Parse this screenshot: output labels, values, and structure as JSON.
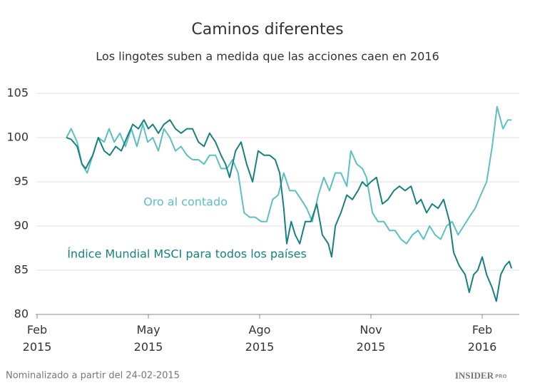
{
  "chart_data": {
    "type": "line",
    "title": "Caminos diferentes",
    "subtitle": "Los lingotes suben a medida que las acciones caen en 2016",
    "annotations": [
      "Oro al contado",
      "Índice Mundial MSCI para todos los países"
    ],
    "footnote": "Nominalizado a partir del 24-02-2015",
    "brand": "INSIDER",
    "brand_suffix": "PRO",
    "xlim": [
      0,
      13
    ],
    "xticks": [
      {
        "value": 0,
        "label": "Feb 2015"
      },
      {
        "value": 3,
        "label": "May 2015"
      },
      {
        "value": 6,
        "label": "Ago 2015"
      },
      {
        "value": 9,
        "label": "Nov 2015"
      },
      {
        "value": 12,
        "label": "Feb 2016"
      }
    ],
    "ylim": [
      80,
      105
    ],
    "yticks": [
      80,
      85,
      90,
      95,
      100,
      105
    ],
    "grid": true,
    "series": [
      {
        "name": "Oro al contado",
        "color": "#5cbfc3",
        "x": [
          0.79,
          0.92,
          1.08,
          1.21,
          1.35,
          1.5,
          1.65,
          1.81,
          1.94,
          2.08,
          2.23,
          2.38,
          2.54,
          2.69,
          2.85,
          2.98,
          3.12,
          3.27,
          3.42,
          3.58,
          3.73,
          3.88,
          4.04,
          4.19,
          4.35,
          4.5,
          4.65,
          4.81,
          4.96,
          5.12,
          5.27,
          5.42,
          5.58,
          5.73,
          5.88,
          6.04,
          6.19,
          6.35,
          6.5,
          6.65,
          6.81,
          6.96,
          7.12,
          7.27,
          7.42,
          7.58,
          7.73,
          7.88,
          8.04,
          8.19,
          8.35,
          8.46,
          8.62,
          8.77,
          8.88,
          9.04,
          9.19,
          9.35,
          9.5,
          9.65,
          9.81,
          9.96,
          10.12,
          10.27,
          10.42,
          10.58,
          10.73,
          10.88,
          11.04,
          11.19,
          11.35,
          11.5,
          11.65,
          11.81,
          11.96,
          12.12,
          12.27,
          12.4,
          12.56,
          12.69,
          12.79
        ],
        "values": [
          100,
          101,
          99.5,
          97,
          96,
          98,
          100,
          99.5,
          101,
          99.5,
          100.5,
          99,
          101,
          99,
          101.5,
          99.5,
          100,
          98.5,
          101,
          100,
          98.5,
          99,
          98,
          97.5,
          97.5,
          97,
          98,
          98,
          96.5,
          96.5,
          97.5,
          96,
          91.5,
          91,
          91,
          90.5,
          90.5,
          93,
          93.5,
          96,
          94,
          94,
          93,
          92,
          90.5,
          93.5,
          95.5,
          94,
          96,
          96,
          94.5,
          98.5,
          97,
          96.5,
          95.5,
          91.5,
          90.5,
          90.5,
          89.5,
          89.5,
          88.5,
          88,
          89,
          89.5,
          88.5,
          90,
          89,
          88.5,
          90,
          90.5,
          89,
          90,
          91,
          92,
          93.5,
          95,
          99,
          103.5,
          101,
          102,
          102
        ]
      },
      {
        "name": "Índice Mundial MSCI para todos los países",
        "color": "#17817f",
        "x": [
          0.79,
          0.92,
          1.08,
          1.21,
          1.31,
          1.5,
          1.65,
          1.81,
          1.96,
          2.12,
          2.27,
          2.42,
          2.58,
          2.73,
          2.88,
          3,
          3.12,
          3.27,
          3.42,
          3.58,
          3.73,
          3.88,
          4.04,
          4.19,
          4.35,
          4.5,
          4.65,
          4.81,
          4.96,
          5.08,
          5.19,
          5.35,
          5.5,
          5.65,
          5.81,
          5.96,
          6.12,
          6.27,
          6.42,
          6.54,
          6.65,
          6.73,
          6.85,
          6.96,
          7.08,
          7.23,
          7.38,
          7.54,
          7.69,
          7.85,
          7.94,
          8.04,
          8.19,
          8.35,
          8.5,
          8.65,
          8.77,
          8.88,
          9,
          9.15,
          9.31,
          9.46,
          9.62,
          9.77,
          9.92,
          10.08,
          10.23,
          10.35,
          10.5,
          10.65,
          10.81,
          10.96,
          11.12,
          11.23,
          11.38,
          11.54,
          11.65,
          11.77,
          11.88,
          12,
          12.12,
          12.27,
          12.38,
          12.5,
          12.62,
          12.73,
          12.79
        ],
        "values": [
          100,
          99.8,
          99,
          97,
          96.5,
          98,
          100,
          98.5,
          98,
          99,
          98.5,
          100,
          101.5,
          101,
          102,
          101,
          101.5,
          100.5,
          101.5,
          102,
          101,
          100.5,
          101,
          101,
          99.5,
          99,
          100.5,
          99.5,
          98,
          97,
          95.5,
          98.5,
          99.5,
          97,
          95,
          98.5,
          98,
          98,
          97.5,
          96,
          92,
          88,
          90.5,
          89,
          88,
          90.5,
          90.5,
          92.5,
          89,
          88,
          86.5,
          90,
          91.5,
          93.5,
          93,
          94,
          95,
          94.5,
          95,
          95.5,
          92.5,
          93,
          94,
          94.5,
          94,
          94.5,
          92.5,
          93,
          91.5,
          92.5,
          92,
          93,
          90.5,
          87,
          85.5,
          84.5,
          82.5,
          84.5,
          85,
          86.5,
          84.5,
          83,
          81.5,
          84.5,
          85.5,
          86,
          85.2
        ]
      }
    ]
  }
}
